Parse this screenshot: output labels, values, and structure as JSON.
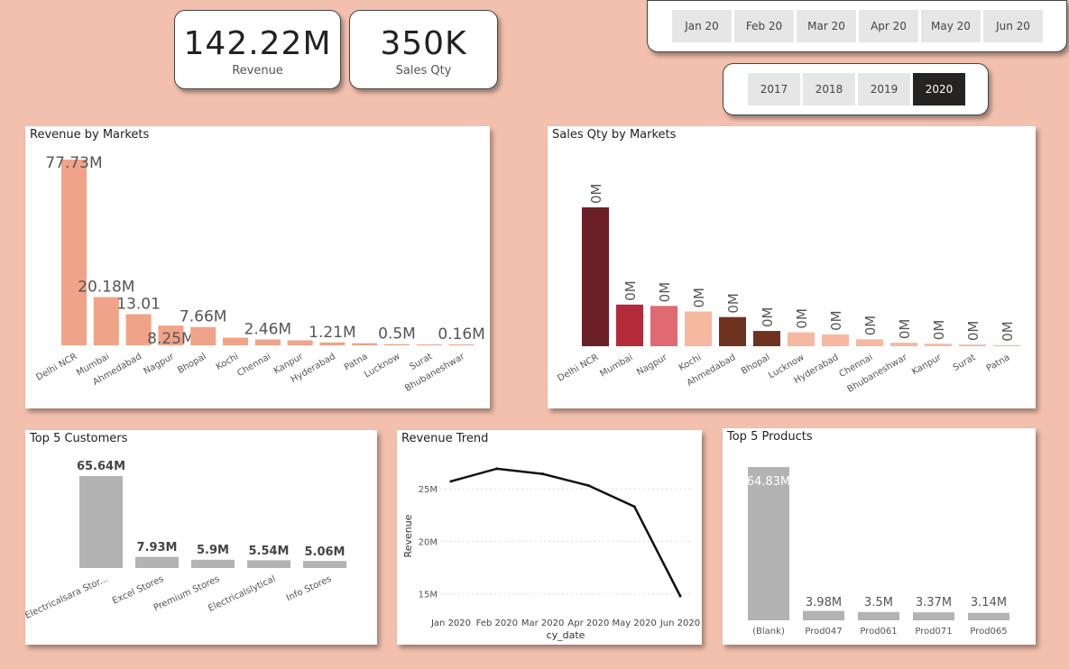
{
  "kpis": {
    "revenue": {
      "value": "142.22M",
      "label": "Revenue"
    },
    "sales_qty": {
      "value": "350K",
      "label": "Sales Qty"
    }
  },
  "month_slicer": {
    "items": [
      "Jan 20",
      "Feb 20",
      "Mar 20",
      "Apr 20",
      "May 20",
      "Jun 20"
    ]
  },
  "year_slicer": {
    "items": [
      "2017",
      "2018",
      "2019",
      "2020"
    ],
    "selected": "2020"
  },
  "chart_data": [
    {
      "id": "revenue_by_markets",
      "type": "bar",
      "title": "Revenue by Markets",
      "categories": [
        "Delhi NCR",
        "Mumbai",
        "Ahmedabad",
        "Nagpur",
        "Bhopal",
        "Kochi",
        "Chennai",
        "Kanpur",
        "Hyderabad",
        "Patna",
        "Lucknow",
        "Surat",
        "Bhubaneshwar"
      ],
      "values": [
        77.73,
        20.18,
        13.01,
        8.25,
        7.66,
        3.2,
        2.46,
        2.1,
        1.21,
        0.9,
        0.5,
        0.3,
        0.16
      ],
      "data_labels": [
        "77.73M",
        "20.18M",
        "13.01",
        "8.25M",
        "7.66M",
        "",
        "2.46M",
        "",
        "1.21M",
        "",
        "0.5M",
        "",
        "0.16M"
      ],
      "color": "#f0a388"
    },
    {
      "id": "sales_qty_by_markets",
      "type": "bar",
      "title": "Sales Qty by Markets",
      "categories": [
        "Delhi NCR",
        "Mumbai",
        "Nagpur",
        "Kochi",
        "Ahmedabad",
        "Bhopal",
        "Lucknow",
        "Hyderabad",
        "Chennai",
        "Bhubaneshwar",
        "Kanpur",
        "Surat",
        "Patna"
      ],
      "values": [
        100,
        30,
        29,
        25,
        21,
        11,
        10,
        8.5,
        5,
        2.5,
        1.8,
        1.2,
        0.8
      ],
      "data_labels": [
        "0M",
        "0M",
        "0M",
        "0M",
        "0M",
        "0M",
        "0M",
        "0M",
        "0M",
        "0M",
        "0M",
        "0M",
        "0M"
      ],
      "colors": [
        "#6b1f27",
        "#b32b3a",
        "#e06a72",
        "#f7b8a2",
        "#6e3320",
        "#6e3320",
        "#f7b8a2",
        "#f7b8a2",
        "#f7b8a2",
        "#f7b8a2",
        "#f7b8a2",
        "#f7b8a2",
        "#f7b8a2"
      ]
    },
    {
      "id": "top5_customers",
      "type": "bar",
      "title": "Top 5 Customers",
      "categories": [
        "Electricalsara Stor...",
        "Excel Stores",
        "Premium Stores",
        "Electricalslytical",
        "Info Stores"
      ],
      "values": [
        65.64,
        7.93,
        5.9,
        5.54,
        5.06
      ],
      "data_labels": [
        "65.64M",
        "7.93M",
        "5.9M",
        "5.54M",
        "5.06M"
      ],
      "color": "#b3b3b3"
    },
    {
      "id": "revenue_trend",
      "type": "line",
      "title": "Revenue Trend",
      "x": [
        "Jan 2020",
        "Feb 2020",
        "Mar 2020",
        "Apr 2020",
        "May 2020",
        "Jun 2020"
      ],
      "y": [
        25.7,
        26.9,
        26.4,
        25.3,
        23.3,
        14.8
      ],
      "xlabel": "cy_date",
      "ylabel": "Revenue",
      "yticks": [
        "15M",
        "20M",
        "25M"
      ],
      "ytick_values": [
        15,
        20,
        25
      ],
      "ylim": [
        13,
        28
      ]
    },
    {
      "id": "top5_products",
      "type": "bar",
      "title": "Top 5 Products",
      "categories": [
        "(Blank)",
        "Prod047",
        "Prod061",
        "Prod071",
        "Prod065"
      ],
      "values": [
        64.83,
        3.98,
        3.5,
        3.37,
        3.14
      ],
      "data_labels": [
        "64.83M",
        "3.98M",
        "3.5M",
        "3.37M",
        "3.14M"
      ],
      "color": "#b3b3b3"
    }
  ]
}
